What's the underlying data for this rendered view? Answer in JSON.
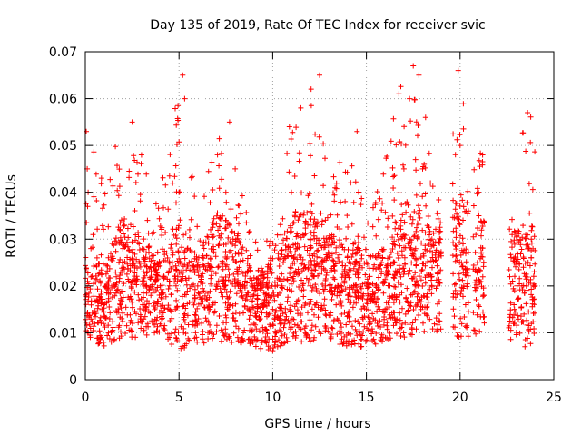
{
  "chart_data": {
    "type": "scatter",
    "title": "Day 135 of 2019, Rate Of TEC Index for receiver svic",
    "xlabel": "GPS time / hours",
    "ylabel": "ROTI / TECUs",
    "xlim": [
      0,
      25
    ],
    "ylim": [
      0,
      0.07
    ],
    "x_ticks": [
      0,
      5,
      10,
      15,
      20,
      25
    ],
    "y_ticks": [
      0,
      0.01,
      0.02,
      0.03,
      0.04,
      0.05,
      0.06,
      0.07
    ],
    "x_tick_labels": [
      "0",
      "5",
      "10",
      "15",
      "20",
      "25"
    ],
    "y_tick_labels": [
      "0",
      "0.01",
      "0.02",
      "0.03",
      "0.04",
      "0.05",
      "0.06",
      "0.07"
    ],
    "grid": true,
    "marker": "+",
    "marker_color": "#ff0000",
    "data_gaps_hours": [
      [
        19.0,
        19.6
      ],
      [
        20.45,
        20.7
      ],
      [
        21.3,
        22.6
      ]
    ],
    "series": [
      {
        "name": "ROTI",
        "points_sample": [
          [
            0.05,
            0.053
          ],
          [
            0.1,
            0.045
          ],
          [
            0.15,
            0.04
          ],
          [
            0.3,
            0.028
          ],
          [
            0.5,
            0.012
          ],
          [
            1.0,
            0.016
          ],
          [
            1.3,
            0.013
          ],
          [
            1.5,
            0.02
          ],
          [
            2.0,
            0.028
          ],
          [
            2.5,
            0.055
          ],
          [
            3.0,
            0.048
          ],
          [
            3.5,
            0.018
          ],
          [
            4.0,
            0.02
          ],
          [
            4.5,
            0.015
          ],
          [
            5.0,
            0.04
          ],
          [
            5.2,
            0.065
          ],
          [
            5.3,
            0.06
          ],
          [
            6.0,
            0.02
          ],
          [
            6.5,
            0.017
          ],
          [
            7.0,
            0.02
          ],
          [
            7.5,
            0.04
          ],
          [
            7.7,
            0.055
          ],
          [
            8.0,
            0.045
          ],
          [
            8.5,
            0.02
          ],
          [
            9.0,
            0.012
          ],
          [
            9.5,
            0.02
          ],
          [
            10.0,
            0.015
          ],
          [
            10.5,
            0.02
          ],
          [
            11.0,
            0.04
          ],
          [
            11.5,
            0.058
          ],
          [
            12.0,
            0.03
          ],
          [
            12.5,
            0.065
          ],
          [
            13.0,
            0.03
          ],
          [
            13.5,
            0.02
          ],
          [
            14.0,
            0.018
          ],
          [
            14.5,
            0.053
          ],
          [
            15.0,
            0.015
          ],
          [
            15.5,
            0.02
          ],
          [
            16.0,
            0.015
          ],
          [
            16.5,
            0.025
          ],
          [
            17.0,
            0.045
          ],
          [
            17.3,
            0.06
          ],
          [
            17.5,
            0.067
          ],
          [
            17.8,
            0.065
          ],
          [
            18.0,
            0.045
          ],
          [
            18.5,
            0.03
          ],
          [
            18.8,
            0.02
          ],
          [
            19.9,
            0.066
          ],
          [
            20.0,
            0.05
          ],
          [
            20.2,
            0.02
          ],
          [
            21.0,
            0.035
          ],
          [
            21.2,
            0.048
          ],
          [
            22.9,
            0.015
          ],
          [
            23.3,
            0.02
          ],
          [
            23.6,
            0.057
          ],
          [
            23.8,
            0.03
          ],
          [
            24.0,
            0.02
          ]
        ],
        "envelope_hourly": [
          {
            "hour": 0,
            "min": 0.009,
            "median": 0.017,
            "max": 0.054
          },
          {
            "hour": 1,
            "min": 0.007,
            "median": 0.016,
            "max": 0.043
          },
          {
            "hour": 2,
            "min": 0.009,
            "median": 0.022,
            "max": 0.055
          },
          {
            "hour": 3,
            "min": 0.009,
            "median": 0.02,
            "max": 0.05
          },
          {
            "hour": 4,
            "min": 0.01,
            "median": 0.018,
            "max": 0.04
          },
          {
            "hour": 5,
            "min": 0.006,
            "median": 0.02,
            "max": 0.065
          },
          {
            "hour": 6,
            "min": 0.008,
            "median": 0.017,
            "max": 0.035
          },
          {
            "hour": 7,
            "min": 0.007,
            "median": 0.022,
            "max": 0.055
          },
          {
            "hour": 8,
            "min": 0.008,
            "median": 0.02,
            "max": 0.045
          },
          {
            "hour": 9,
            "min": 0.007,
            "median": 0.015,
            "max": 0.03
          },
          {
            "hour": 10,
            "min": 0.006,
            "median": 0.016,
            "max": 0.03
          },
          {
            "hour": 11,
            "min": 0.008,
            "median": 0.022,
            "max": 0.058
          },
          {
            "hour": 12,
            "min": 0.008,
            "median": 0.022,
            "max": 0.065
          },
          {
            "hour": 13,
            "min": 0.009,
            "median": 0.02,
            "max": 0.045
          },
          {
            "hour": 14,
            "min": 0.006,
            "median": 0.018,
            "max": 0.053
          },
          {
            "hour": 15,
            "min": 0.007,
            "median": 0.017,
            "max": 0.035
          },
          {
            "hour": 16,
            "min": 0.008,
            "median": 0.018,
            "max": 0.047
          },
          {
            "hour": 17,
            "min": 0.009,
            "median": 0.024,
            "max": 0.067
          },
          {
            "hour": 18,
            "min": 0.01,
            "median": 0.022,
            "max": 0.062
          },
          {
            "hour": 19,
            "min": 0.01,
            "median": 0.02,
            "max": 0.035
          },
          {
            "hour": 20,
            "min": 0.008,
            "median": 0.024,
            "max": 0.066
          },
          {
            "hour": 21,
            "min": 0.01,
            "median": 0.022,
            "max": 0.048
          },
          {
            "hour": 23,
            "min": 0.007,
            "median": 0.02,
            "max": 0.057
          }
        ]
      }
    ]
  }
}
